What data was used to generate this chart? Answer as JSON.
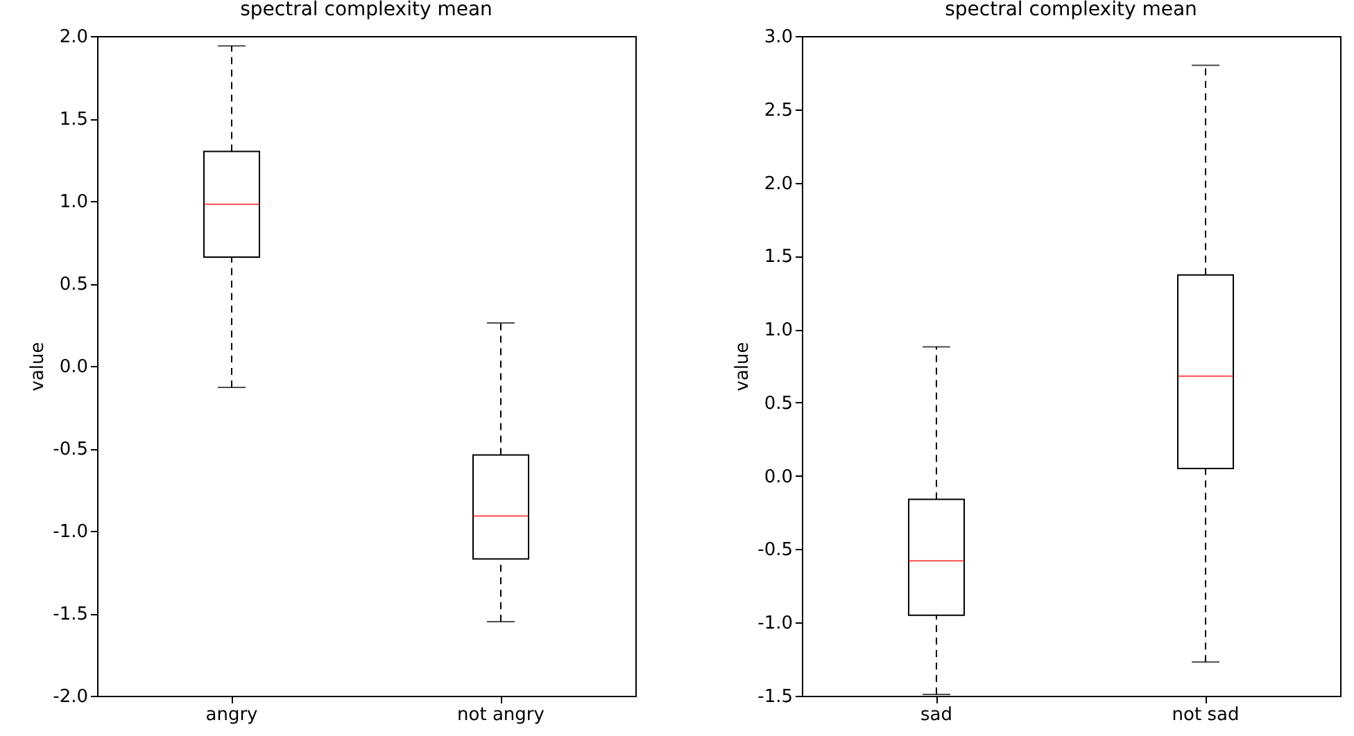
{
  "chart_data": [
    {
      "type": "box",
      "title": "spectral complexity mean",
      "ylabel": "value",
      "categories": [
        "angry",
        "not angry"
      ],
      "boxes": [
        {
          "low": -0.13,
          "q1": 0.66,
          "median": 0.98,
          "q3": 1.3,
          "high": 1.94
        },
        {
          "low": -1.55,
          "q1": -1.17,
          "median": -0.91,
          "q3": -0.54,
          "high": 0.26
        }
      ],
      "ylim": [
        -2,
        2
      ],
      "yticks": [
        {
          "value": -2,
          "label": "-2.0"
        },
        {
          "value": -1.5,
          "label": "-1.5"
        },
        {
          "value": -1,
          "label": "-1.0"
        },
        {
          "value": -0.5,
          "label": "-0.5"
        },
        {
          "value": 0,
          "label": "0.0"
        },
        {
          "value": 0.5,
          "label": "0.5"
        },
        {
          "value": 1,
          "label": "1.0"
        },
        {
          "value": 1.5,
          "label": "1.5"
        },
        {
          "value": 2,
          "label": "2.0"
        }
      ],
      "grid": false
    },
    {
      "type": "box",
      "title": "spectral complexity mean",
      "ylabel": "value",
      "categories": [
        "sad",
        "not sad"
      ],
      "boxes": [
        {
          "low": -1.49,
          "q1": -0.95,
          "median": -0.58,
          "q3": -0.16,
          "high": 0.88
        },
        {
          "low": -1.27,
          "q1": 0.05,
          "median": 0.68,
          "q3": 1.37,
          "high": 2.8
        }
      ],
      "ylim": [
        -1.5,
        3
      ],
      "yticks": [
        {
          "value": -1.5,
          "label": "-1.5"
        },
        {
          "value": -1,
          "label": "-1.0"
        },
        {
          "value": -0.5,
          "label": "-0.5"
        },
        {
          "value": 0,
          "label": "0.0"
        },
        {
          "value": 0.5,
          "label": "0.5"
        },
        {
          "value": 1,
          "label": "1.0"
        },
        {
          "value": 1.5,
          "label": "1.5"
        },
        {
          "value": 2,
          "label": "2.0"
        },
        {
          "value": 2.5,
          "label": "2.5"
        },
        {
          "value": 3,
          "label": "3.0"
        }
      ],
      "grid": false
    }
  ]
}
